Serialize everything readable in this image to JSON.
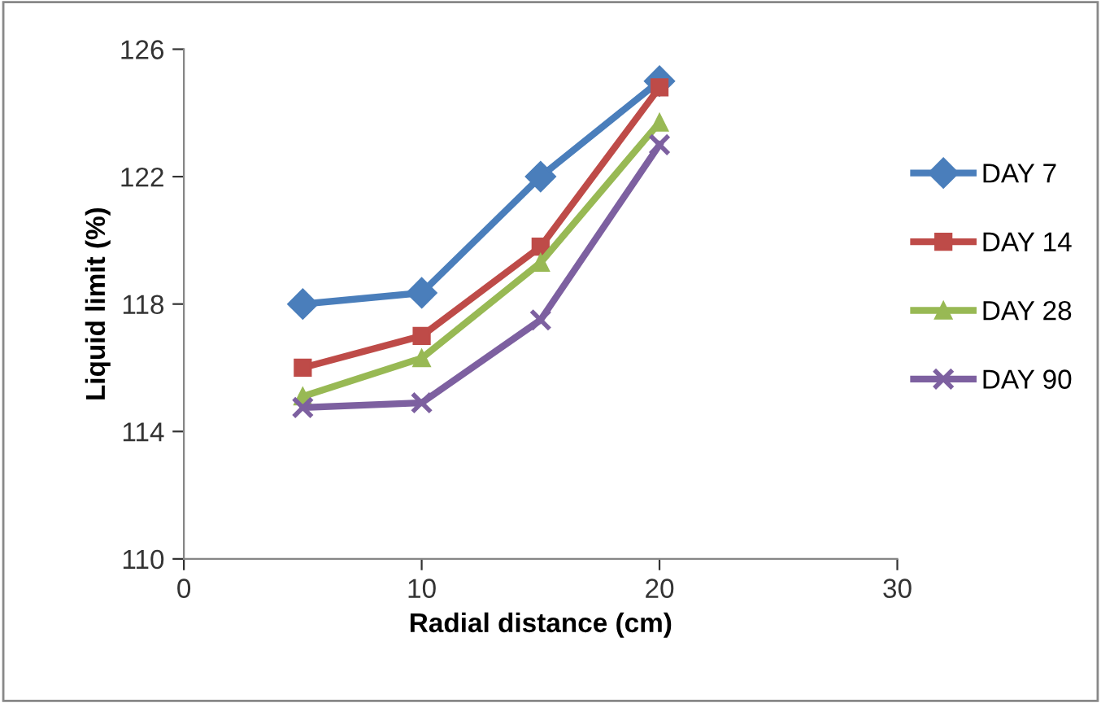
{
  "chart_data": {
    "type": "line",
    "xlabel": "Radial distance (cm)",
    "ylabel": "Liquid limit (%)",
    "xlim": [
      0,
      30
    ],
    "xticks": [
      0,
      10,
      20,
      30
    ],
    "ylim": [
      110,
      126
    ],
    "yticks": [
      110,
      114,
      118,
      122,
      126
    ],
    "grid": false,
    "legend": "right",
    "series": [
      {
        "name": "DAY 7",
        "color": "#4a7ebb",
        "marker": "diamond",
        "x": [
          5,
          10,
          15,
          20
        ],
        "values": [
          118.0,
          118.35,
          122.0,
          125.0
        ]
      },
      {
        "name": "DAY 14",
        "color": "#be4b48",
        "marker": "square",
        "x": [
          5,
          10,
          15,
          20
        ],
        "values": [
          116.0,
          117.0,
          119.8,
          124.8
        ]
      },
      {
        "name": "DAY 28",
        "color": "#98b954",
        "marker": "triangle",
        "x": [
          5,
          10,
          15,
          20
        ],
        "values": [
          115.1,
          116.3,
          119.3,
          123.7
        ]
      },
      {
        "name": "DAY 90",
        "color": "#7d60a0",
        "marker": "cross",
        "x": [
          5,
          10,
          15,
          20
        ],
        "values": [
          114.75,
          114.9,
          117.5,
          123.0
        ]
      }
    ]
  }
}
